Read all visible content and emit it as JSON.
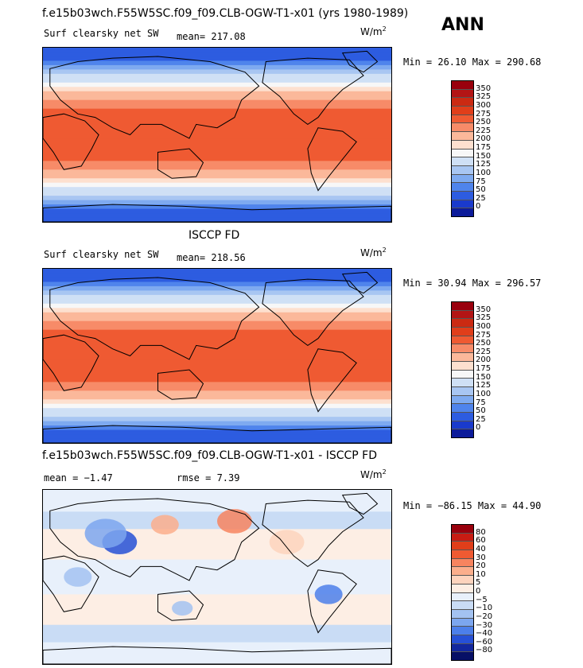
{
  "header": {
    "ann": "ANN"
  },
  "chart_data": [
    {
      "type": "heatmap",
      "title": "f.e15b03wch.F55W5SC.f09_f09.CLB-OGW-T1-x01 (yrs 1980-1989)",
      "left_label": "Surf clearsky net SW",
      "mean_label": "mean= 217.08",
      "units_base": "W/m",
      "units_exp": "2",
      "minmax": "Min =  26.10 Max = 290.68",
      "min": 26.1,
      "max": 290.68,
      "mean": 217.08,
      "levels": [
        "350",
        "325",
        "300",
        "275",
        "250",
        "225",
        "200",
        "175",
        "150",
        "125",
        "100",
        "75",
        "50",
        "25",
        "0"
      ],
      "colors": [
        "#99000d",
        "#b31515",
        "#cb2a12",
        "#e03e1a",
        "#ef5a32",
        "#f78b68",
        "#fbb89a",
        "#fde0cf",
        "#f7f7f7",
        "#cfe0f5",
        "#a8c6f2",
        "#7eaaf0",
        "#4f84ec",
        "#2d5ce0",
        "#1a3acc",
        "#0c1b9a"
      ]
    },
    {
      "type": "heatmap",
      "title": "ISCCP FD",
      "left_label": "Surf clearsky net SW",
      "mean_label": "mean= 218.56",
      "units_base": "W/m",
      "units_exp": "2",
      "minmax": "Min =  30.94 Max = 296.57",
      "min": 30.94,
      "max": 296.57,
      "mean": 218.56,
      "levels": [
        "350",
        "325",
        "300",
        "275",
        "250",
        "225",
        "200",
        "175",
        "150",
        "125",
        "100",
        "75",
        "50",
        "25",
        "0"
      ],
      "colors": [
        "#99000d",
        "#b31515",
        "#cb2a12",
        "#e03e1a",
        "#ef5a32",
        "#f78b68",
        "#fbb89a",
        "#fde0cf",
        "#f7f7f7",
        "#cfe0f5",
        "#a8c6f2",
        "#7eaaf0",
        "#4f84ec",
        "#2d5ce0",
        "#1a3acc",
        "#0c1b9a"
      ]
    },
    {
      "type": "heatmap",
      "title": "f.e15b03wch.F55W5SC.f09_f09.CLB-OGW-T1-x01 - ISCCP FD",
      "mean_label": "mean =  −1.47",
      "rmse_label": "rmse =  7.39",
      "units_base": "W/m",
      "units_exp": "2",
      "minmax": "Min = −86.15 Max =  44.90",
      "min": -86.15,
      "max": 44.9,
      "mean": -1.47,
      "rmse": 7.39,
      "levels": [
        "80",
        "60",
        "40",
        "30",
        "20",
        "10",
        "5",
        "0",
        "−5",
        "−10",
        "−20",
        "−30",
        "−40",
        "−60",
        "−80"
      ],
      "colors": [
        "#99000d",
        "#c81c13",
        "#e03e1a",
        "#ef5a32",
        "#f7845f",
        "#fbae8c",
        "#fdd3bd",
        "#fdeee4",
        "#e8f0fb",
        "#c9dcf5",
        "#a3c2f1",
        "#7ca6ef",
        "#4c7fea",
        "#2650d6",
        "#12279e",
        "#071066"
      ]
    }
  ]
}
